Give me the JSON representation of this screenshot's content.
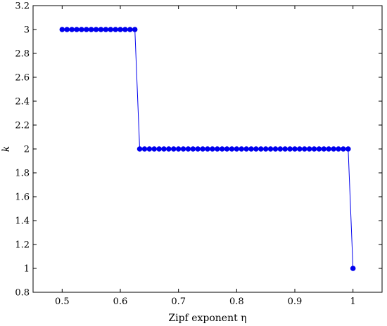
{
  "chart_data": {
    "type": "line",
    "title": "",
    "xlabel": "Zipf exponent η",
    "ylabel": "k",
    "xlim": [
      0.45,
      1.05
    ],
    "ylim": [
      0.8,
      3.2
    ],
    "xticks": [
      0.5,
      0.6,
      0.7,
      0.8,
      0.9,
      1.0
    ],
    "xtick_labels": [
      "0.5",
      "0.6",
      "0.7",
      "0.8",
      "0.9",
      "1"
    ],
    "yticks": [
      0.8,
      1.0,
      1.2,
      1.4,
      1.6,
      1.8,
      2.0,
      2.2,
      2.4,
      2.6,
      2.8,
      3.0,
      3.2
    ],
    "ytick_labels": [
      "0.8",
      "1",
      "1.2",
      "1.4",
      "1.6",
      "1.8",
      "2",
      "2.2",
      "2.4",
      "2.6",
      "2.8",
      "3",
      "3.2"
    ],
    "grid": false,
    "colors": {
      "series": "#0000ee",
      "axes": "#000000"
    },
    "series": [
      {
        "x": [
          0.5,
          0.5083,
          0.5167,
          0.525,
          0.5333,
          0.5417,
          0.55,
          0.5583,
          0.5667,
          0.575,
          0.5833,
          0.5917,
          0.6,
          0.6083,
          0.6167,
          0.625,
          0.6333,
          0.6417,
          0.65,
          0.6583,
          0.6667,
          0.675,
          0.6833,
          0.6917,
          0.7,
          0.7083,
          0.7167,
          0.725,
          0.7333,
          0.7417,
          0.75,
          0.7583,
          0.7667,
          0.775,
          0.7833,
          0.7917,
          0.8,
          0.8083,
          0.8167,
          0.825,
          0.8333,
          0.8417,
          0.85,
          0.8583,
          0.8667,
          0.875,
          0.8833,
          0.8917,
          0.9,
          0.9083,
          0.9167,
          0.925,
          0.9333,
          0.9417,
          0.95,
          0.9583,
          0.9667,
          0.975,
          0.9833,
          0.9917,
          1.0
        ],
        "y": [
          3,
          3,
          3,
          3,
          3,
          3,
          3,
          3,
          3,
          3,
          3,
          3,
          3,
          3,
          3,
          3,
          2,
          2,
          2,
          2,
          2,
          2,
          2,
          2,
          2,
          2,
          2,
          2,
          2,
          2,
          2,
          2,
          2,
          2,
          2,
          2,
          2,
          2,
          2,
          2,
          2,
          2,
          2,
          2,
          2,
          2,
          2,
          2,
          2,
          2,
          2,
          2,
          2,
          2,
          2,
          2,
          2,
          2,
          2,
          2,
          1
        ]
      }
    ]
  }
}
